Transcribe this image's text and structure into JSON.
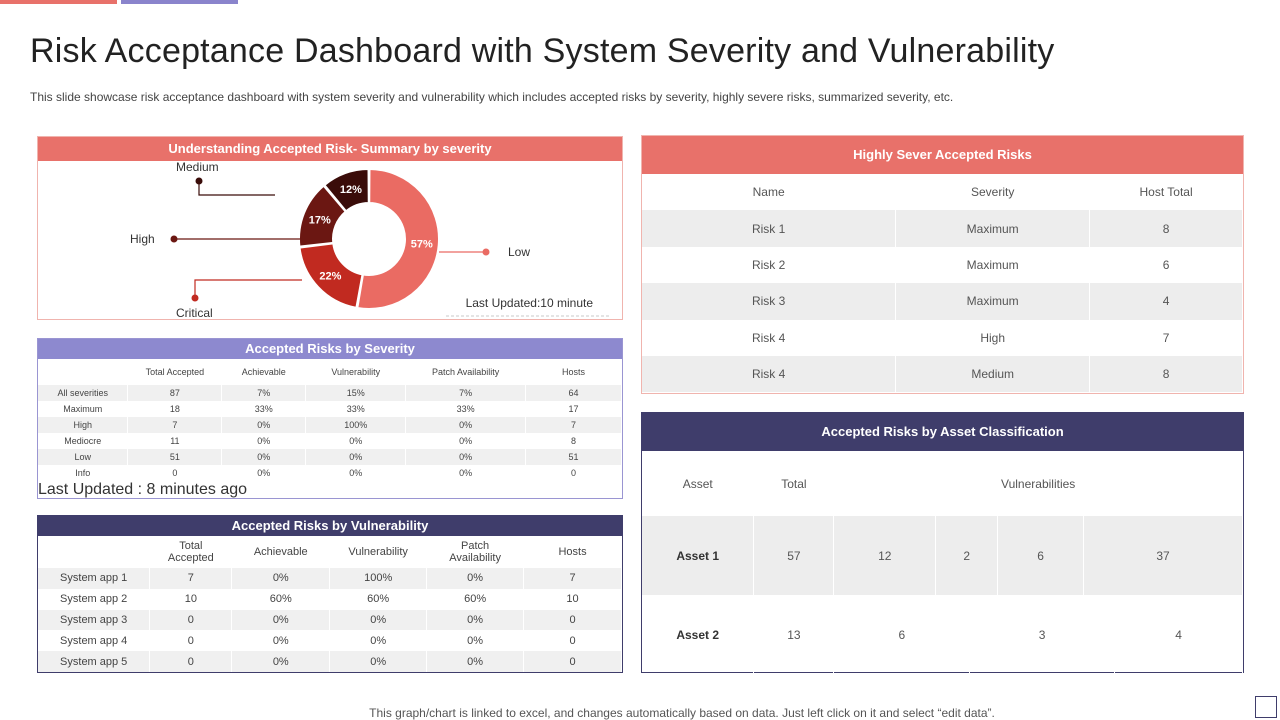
{
  "header": {
    "title": "Risk Acceptance Dashboard with System Severity and Vulnerability",
    "subtitle": "This slide showcase risk acceptance dashboard with system severity and vulnerability which includes accepted risks by severity, highly severe risks, summarized severity, etc."
  },
  "colors": {
    "coral": "#e8716a",
    "lavender": "#8d89cf",
    "navy": "#3f3d6b",
    "low": "#ea6b63",
    "critical": "#c12a20",
    "high": "#6b1712",
    "medium": "#3a0c09"
  },
  "chart_data": {
    "type": "pie",
    "title": "Understanding Accepted Risk- Summary by severity",
    "categories": [
      "Low",
      "Critical",
      "High",
      "Medium"
    ],
    "values": [
      57,
      22,
      17,
      12
    ],
    "value_labels": [
      "57%",
      "22%",
      "17%",
      "12%"
    ],
    "donut": true,
    "note": "Last Updated:10 minute"
  },
  "severity_table": {
    "title": "Accepted Risks  by Severity",
    "columns": [
      "",
      "Total Accepted",
      "Achievable",
      "Vulnerability",
      "Patch Availability",
      "Hosts"
    ],
    "rows": [
      [
        "All severities",
        "87",
        "7%",
        "15%",
        "7%",
        "64"
      ],
      [
        "Maximum",
        "18",
        "33%",
        "33%",
        "33%",
        "17"
      ],
      [
        "High",
        "7",
        "0%",
        "100%",
        "0%",
        "7"
      ],
      [
        "Mediocre",
        "11",
        "0%",
        "0%",
        "0%",
        "8"
      ],
      [
        "Low",
        "51",
        "0%",
        "0%",
        "0%",
        "51"
      ],
      [
        "Info",
        "0",
        "0%",
        "0%",
        "0%",
        "0"
      ]
    ],
    "footnote": "Last Updated : 8 minutes ago"
  },
  "vulnerability_table": {
    "title": "Accepted Risks  by Vulnerability",
    "columns": [
      "",
      "Total Accepted",
      "Achievable",
      "Vulnerability",
      "Patch Availability",
      "Hosts"
    ],
    "rows": [
      [
        "System app 1",
        "7",
        "0%",
        "100%",
        "0%",
        "7"
      ],
      [
        "System app 2",
        "10",
        "60%",
        "60%",
        "60%",
        "10"
      ],
      [
        "System app 3",
        "0",
        "0%",
        "0%",
        "0%",
        "0"
      ],
      [
        "System app 4",
        "0",
        "0%",
        "0%",
        "0%",
        "0"
      ],
      [
        "System app 5",
        "0",
        "0%",
        "0%",
        "0%",
        "0"
      ]
    ]
  },
  "severe_table": {
    "title": "Highly Sever Accepted Risks",
    "columns": [
      "Name",
      "Severity",
      "Host Total"
    ],
    "rows": [
      [
        "Risk 1",
        "Maximum",
        "8"
      ],
      [
        "Risk 2",
        "Maximum",
        "6"
      ],
      [
        "Risk 3",
        "Maximum",
        "4"
      ],
      [
        "Risk 4",
        "High",
        "7"
      ],
      [
        "Risk 4",
        "Medium",
        "8"
      ]
    ]
  },
  "asset_table": {
    "title": "Accepted Risks  by Asset Classification",
    "columns": [
      "Asset",
      "Total",
      "Vulnerabilities"
    ],
    "rows": [
      {
        "asset": "Asset 1",
        "total": "57",
        "vulns": [
          "12",
          "2",
          "6",
          "37"
        ]
      },
      {
        "asset": "Asset 2",
        "total": "13",
        "vulns": [
          "6",
          "3",
          "4"
        ]
      }
    ]
  },
  "footer": {
    "note": "This graph/chart is linked to excel,  and changes automatically based on data. Just left click on it and select “edit data”."
  }
}
